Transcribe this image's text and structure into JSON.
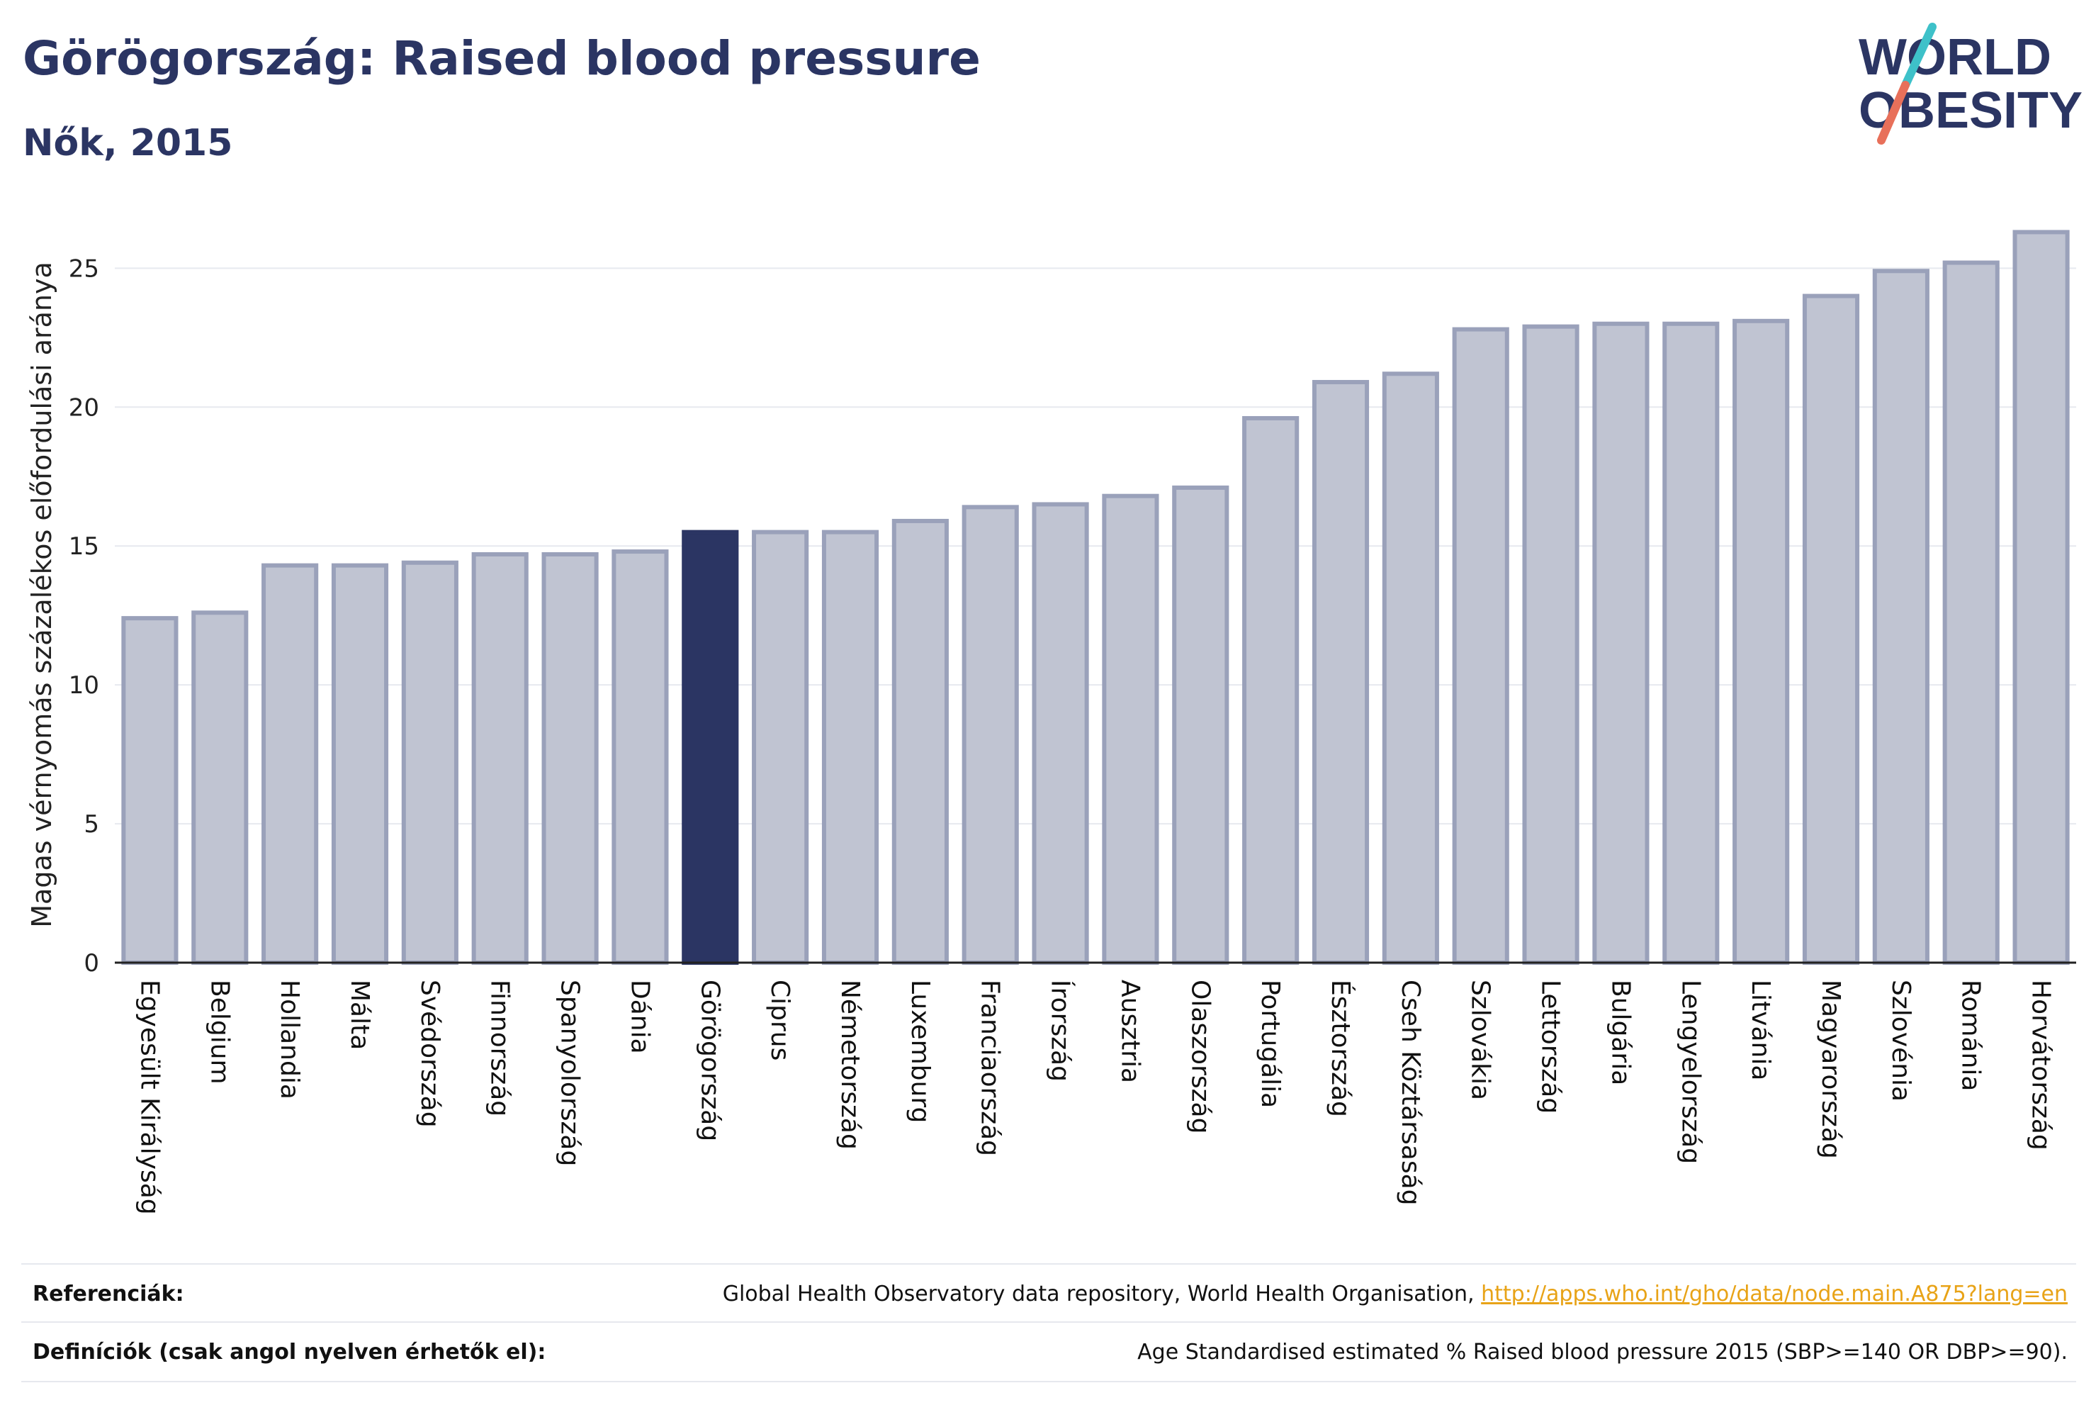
{
  "header": {
    "title": "Görögország: Raised blood pressure",
    "subtitle": "Nők, 2015"
  },
  "logo": {
    "line1": "WORLD",
    "line2": "OBESITY",
    "slash_colors": [
      "#3ec1c9",
      "#e8705a"
    ]
  },
  "chart_data": {
    "type": "bar",
    "ylabel": "Magas vérnyomás százalékos előfordulási aránya",
    "ylim": [
      0,
      27
    ],
    "yticks": [
      0,
      5,
      10,
      15,
      20,
      25
    ],
    "grid": true,
    "highlight": "Görögország",
    "colors": {
      "bar": "#c0c4d2",
      "bar_border": "#9aa1ba",
      "highlight": "#2b3563"
    },
    "categories": [
      "Egyesült Királyság",
      "Belgium",
      "Hollandia",
      "Málta",
      "Svédország",
      "Finnország",
      "Spanyolország",
      "Dánia",
      "Görögország",
      "Ciprus",
      "Németország",
      "Luxemburg",
      "Franciaország",
      "Írország",
      "Ausztria",
      "Olaszország",
      "Portugália",
      "Észtország",
      "Cseh Köztársaság",
      "Szlovákia",
      "Lettország",
      "Bulgária",
      "Lengyelország",
      "Litvánia",
      "Magyarország",
      "Szlovénia",
      "Románia",
      "Horvátország"
    ],
    "values": [
      12.4,
      12.6,
      14.3,
      14.3,
      14.4,
      14.7,
      14.7,
      14.8,
      15.5,
      15.5,
      15.5,
      15.9,
      16.4,
      16.5,
      16.8,
      17.1,
      19.6,
      20.9,
      21.2,
      22.8,
      22.9,
      23.0,
      23.0,
      23.1,
      24.0,
      24.9,
      25.2,
      26.3
    ]
  },
  "footer": {
    "references_label": "Referenciák:",
    "references_text": "Global Health Observatory data repository, World Health Organisation,",
    "references_link": "http://apps.who.int/gho/data/node.main.A875?lang=en",
    "definitions_label": "Definíciók (csak angol nyelven érhetők el):",
    "definitions_text": "Age Standardised estimated % Raised blood pressure 2015 (SBP>=140 OR DBP>=90)."
  }
}
